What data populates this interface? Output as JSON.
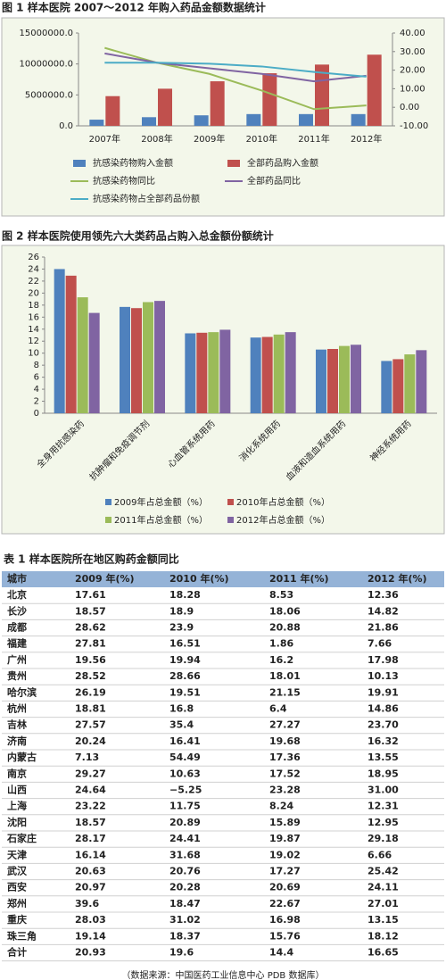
{
  "chart_data": [
    {
      "type": "combo",
      "title": "图 1  样本医院 2007～2012 年购入药品金额数据统计",
      "legend": "bottom",
      "grid": false,
      "categories": [
        "2007年",
        "2008年",
        "2009年",
        "2010年",
        "2011年",
        "2012年"
      ],
      "ylim": [
        0,
        15000000
      ],
      "yticks": [
        {
          "value": 0,
          "label": "0.0"
        },
        {
          "value": 5000000,
          "label": "5000000.0"
        },
        {
          "value": 10000000,
          "label": "10000000.0"
        },
        {
          "value": 15000000,
          "label": "15000000.0"
        }
      ],
      "y2lim": [
        -10,
        40
      ],
      "y2ticks": [
        {
          "value": -10,
          "label": "-10.00"
        },
        {
          "value": 0,
          "label": "0.00"
        },
        {
          "value": 10,
          "label": "10.00"
        },
        {
          "value": 20,
          "label": "20.00"
        },
        {
          "value": 30,
          "label": "30.00"
        },
        {
          "value": 40,
          "label": "40.00"
        }
      ],
      "series": [
        {
          "name": "抗感染药物购入金额",
          "type": "bar",
          "color": "#4f81bd",
          "values": [
            1000000,
            1400000,
            1700000,
            1900000,
            1900000,
            1900000
          ]
        },
        {
          "name": "全部药品购入金额",
          "type": "bar",
          "color": "#c0504d",
          "values": [
            4800000,
            6000000,
            7200000,
            8500000,
            9900000,
            11500000
          ]
        },
        {
          "name": "抗感染药物同比",
          "type": "line",
          "axis": "y2",
          "color": "#9bbb59",
          "values": [
            32,
            24,
            18,
            9,
            -1,
            1
          ]
        },
        {
          "name": "全部药品同比",
          "type": "line",
          "axis": "y2",
          "color": "#8064a2",
          "values": [
            29,
            24,
            21,
            18,
            14,
            17
          ]
        },
        {
          "name": "抗感染药物占全部药品份额",
          "type": "line",
          "axis": "y2",
          "color": "#4bacc6",
          "values": [
            24,
            24,
            23.5,
            22,
            19,
            16.5
          ]
        }
      ]
    },
    {
      "type": "bar",
      "title": "图 2    样本医院使用领先六大类药品占购入总金额份额统计",
      "legend": "bottom",
      "grid": false,
      "categories": [
        "全身用抗感染药",
        "抗肿瘤和免疫调节剂",
        "心血管系统用药",
        "消化系统用药",
        "血液和造血系统用药",
        "神经系统用药"
      ],
      "ylim": [
        0,
        26
      ],
      "yticks": [
        0,
        2,
        4,
        6,
        8,
        10,
        12,
        14,
        16,
        18,
        20,
        22,
        24,
        26
      ],
      "series": [
        {
          "name": "2009年占总金额（%）",
          "color": "#4f81bd",
          "values": [
            24,
            17.7,
            13.3,
            12.6,
            10.6,
            8.7
          ]
        },
        {
          "name": "2010年占总金额（%）",
          "color": "#c0504d",
          "values": [
            22.9,
            17.5,
            13.4,
            12.7,
            10.7,
            9.0
          ]
        },
        {
          "name": "2011年占总金额（%）",
          "color": "#9bbb59",
          "values": [
            19.3,
            18.5,
            13.5,
            13.1,
            11.2,
            9.8
          ]
        },
        {
          "name": "2012年占总金额（%）",
          "color": "#8064a2",
          "values": [
            16.7,
            18.7,
            13.9,
            13.5,
            11.4,
            10.5
          ]
        }
      ]
    }
  ],
  "table": {
    "title": "表 1  样本医院所在地区购药金额同比",
    "header": [
      "城市",
      "2009 年(%)",
      "2010 年(%)",
      "2011 年(%)",
      "2012 年(%)"
    ],
    "rows": [
      [
        "北京",
        "17.61",
        "18.28",
        "8.53",
        "12.36"
      ],
      [
        "长沙",
        "18.57",
        "18.9",
        "18.06",
        "14.82"
      ],
      [
        "成都",
        "28.62",
        "23.9",
        "20.88",
        "21.86"
      ],
      [
        "福建",
        "27.81",
        "16.51",
        "1.86",
        "7.66"
      ],
      [
        "广州",
        "19.56",
        "19.94",
        "16.2",
        "17.98"
      ],
      [
        "贵州",
        "28.52",
        "28.66",
        "18.01",
        "10.13"
      ],
      [
        "哈尔滨",
        "26.19",
        "19.51",
        "21.15",
        "19.91"
      ],
      [
        "杭州",
        "18.81",
        "16.8",
        "6.4",
        "14.86"
      ],
      [
        "吉林",
        "27.57",
        "35.4",
        "27.27",
        "23.70"
      ],
      [
        "济南",
        "20.24",
        "16.41",
        "19.68",
        "16.32"
      ],
      [
        "内蒙古",
        "7.13",
        "54.49",
        "17.36",
        "13.55"
      ],
      [
        "南京",
        "29.27",
        "10.63",
        "17.52",
        "18.95"
      ],
      [
        "山西",
        "24.64",
        "−5.25",
        "23.28",
        "31.00"
      ],
      [
        "上海",
        "23.22",
        "11.75",
        "8.24",
        "12.31"
      ],
      [
        "沈阳",
        "18.57",
        "20.89",
        "15.89",
        "12.95"
      ],
      [
        "石家庄",
        "28.17",
        "24.41",
        "19.87",
        "29.18"
      ],
      [
        "天津",
        "16.14",
        "31.68",
        "19.02",
        "6.66"
      ],
      [
        "武汉",
        "20.63",
        "20.76",
        "17.27",
        "25.42"
      ],
      [
        "西安",
        "20.97",
        "20.28",
        "20.69",
        "24.11"
      ],
      [
        "郑州",
        "39.6",
        "18.47",
        "22.67",
        "27.01"
      ],
      [
        "重庆",
        "28.03",
        "31.02",
        "16.98",
        "13.15"
      ],
      [
        "珠三角",
        "19.14",
        "18.37",
        "15.76",
        "18.12"
      ],
      [
        "合计",
        "20.93",
        "19.6",
        "14.4",
        "16.65"
      ]
    ]
  },
  "footnote": "（数据来源：中国医药工业信息中心 PDB 数据库）"
}
